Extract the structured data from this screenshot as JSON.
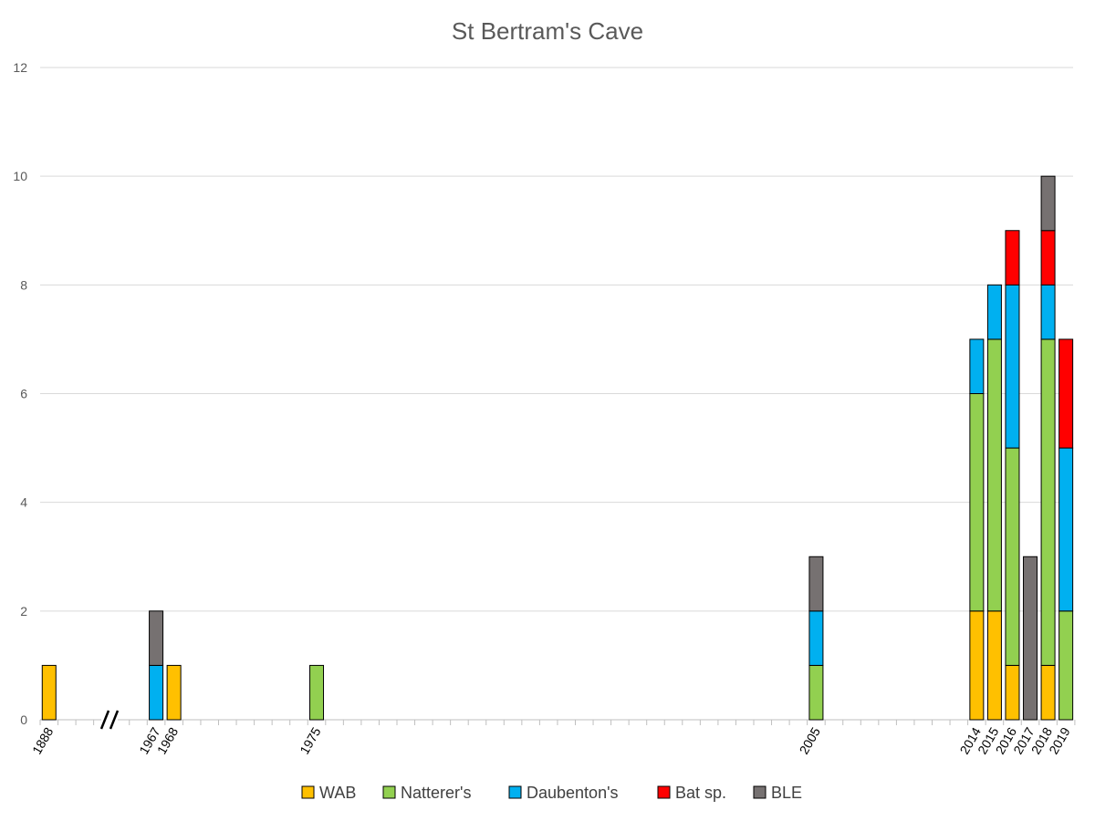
{
  "chart_data": {
    "type": "bar",
    "stacked": true,
    "title": "St Bertram's Cave",
    "xlabel": "",
    "ylabel": "",
    "ylim": [
      0,
      12
    ],
    "yticks": [
      0,
      2,
      4,
      6,
      8,
      10,
      12
    ],
    "grid": true,
    "legend_position": "bottom",
    "axis_break": true,
    "categories": [
      "1888",
      "1967",
      "1968",
      "1975",
      "2005",
      "2014",
      "2015",
      "2016",
      "2017",
      "2018",
      "2019"
    ],
    "series": [
      {
        "name": "WAB",
        "color": "#ffc000",
        "values": [
          1,
          0,
          1,
          0,
          0,
          2,
          2,
          1,
          0,
          1,
          0
        ]
      },
      {
        "name": "Natterer's",
        "color": "#92d050",
        "values": [
          0,
          0,
          0,
          1,
          1,
          4,
          5,
          4,
          0,
          6,
          2
        ]
      },
      {
        "name": "Daubenton's",
        "color": "#00b0f0",
        "values": [
          0,
          1,
          0,
          0,
          1,
          1,
          1,
          3,
          0,
          1,
          3
        ]
      },
      {
        "name": "Bat sp.",
        "color": "#ff0000",
        "values": [
          0,
          0,
          0,
          0,
          0,
          0,
          0,
          1,
          0,
          1,
          2
        ]
      },
      {
        "name": "BLE",
        "color": "#767171",
        "values": [
          0,
          1,
          0,
          0,
          1,
          0,
          0,
          0,
          3,
          1,
          0
        ]
      }
    ]
  }
}
